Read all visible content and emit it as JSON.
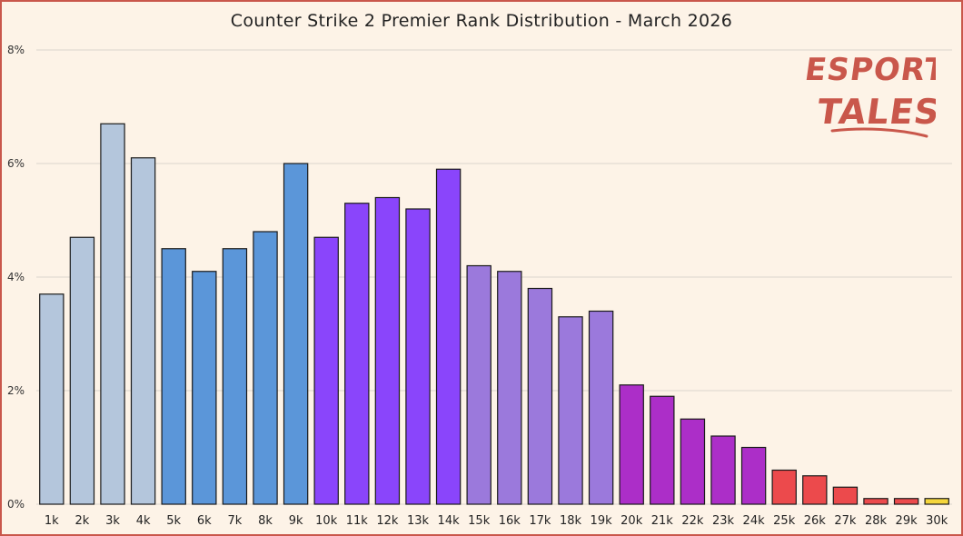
{
  "chart_data": {
    "type": "bar",
    "title": "Counter Strike 2 Premier Rank Distribution - March 2026",
    "xlabel": "",
    "ylabel": "",
    "categories": [
      "1k",
      "2k",
      "3k",
      "4k",
      "5k",
      "6k",
      "7k",
      "8k",
      "9k",
      "10k",
      "11k",
      "12k",
      "13k",
      "14k",
      "15k",
      "16k",
      "17k",
      "18k",
      "19k",
      "20k",
      "21k",
      "22k",
      "23k",
      "24k",
      "25k",
      "26k",
      "27k",
      "28k",
      "29k",
      "30k"
    ],
    "values": [
      3.7,
      4.7,
      6.7,
      6.1,
      4.5,
      4.1,
      4.5,
      4.8,
      6.0,
      4.7,
      5.3,
      5.4,
      5.2,
      5.9,
      4.2,
      4.1,
      3.8,
      3.3,
      3.4,
      2.1,
      1.9,
      1.5,
      1.2,
      1.0,
      0.6,
      0.5,
      0.3,
      0.1,
      0.1,
      0.1
    ],
    "bar_colors": [
      "#b4c6dc",
      "#b4c6dc",
      "#b4c6dc",
      "#b4c6dc",
      "#5b96d9",
      "#5b96d9",
      "#5b96d9",
      "#5b96d9",
      "#5b96d9",
      "#8a45fb",
      "#8a45fb",
      "#8a45fb",
      "#8a45fb",
      "#8a45fb",
      "#9b79dc",
      "#9b79dc",
      "#9b79dc",
      "#9b79dc",
      "#9b79dc",
      "#ac2ec8",
      "#ac2ec8",
      "#ac2ec8",
      "#ac2ec8",
      "#ac2ec8",
      "#ec4a4c",
      "#ec4a4c",
      "#ec4a4c",
      "#ec4a4c",
      "#ec4a4c",
      "#f5d63c"
    ],
    "ylim": [
      0,
      8
    ],
    "yticks": [
      0,
      2,
      4,
      6,
      8
    ],
    "ytick_labels": [
      "0%",
      "2%",
      "4%",
      "6%",
      "8%"
    ],
    "grid": true,
    "legend": "none"
  },
  "logo": {
    "line1": "ESPORTS",
    "line2": "TALES",
    "color": "#c9574b"
  },
  "colors": {
    "background": "#fdf3e7",
    "border": "#c9574b",
    "gridline": "#dcd6cc"
  }
}
